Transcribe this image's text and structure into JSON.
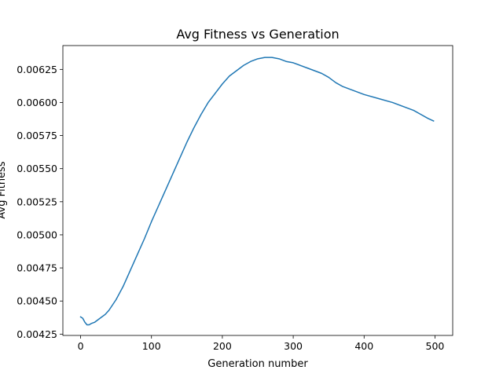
{
  "chart_data": {
    "type": "line",
    "title": "Avg Fitness vs Generation",
    "xlabel": "Generation number",
    "ylabel": "Avg Fitness",
    "xlim": [
      -25,
      525
    ],
    "ylim": [
      0.00424,
      0.00643
    ],
    "xticks": [
      0,
      100,
      200,
      300,
      400,
      500
    ],
    "xtick_labels": [
      "0",
      "100",
      "200",
      "300",
      "400",
      "500"
    ],
    "yticks": [
      0.00425,
      0.0045,
      0.00475,
      0.005,
      0.00525,
      0.0055,
      0.00575,
      0.006,
      0.00625
    ],
    "ytick_labels": [
      "0.00425",
      "0.00450",
      "0.00475",
      "0.00500",
      "0.00525",
      "0.00550",
      "0.00575",
      "0.00600",
      "0.00625"
    ],
    "grid": false,
    "series": [
      {
        "color": "#1f77b4",
        "x": [
          0,
          3,
          6,
          9,
          12,
          15,
          20,
          25,
          30,
          35,
          40,
          45,
          50,
          55,
          60,
          65,
          70,
          80,
          90,
          100,
          110,
          120,
          130,
          140,
          150,
          160,
          170,
          180,
          190,
          200,
          210,
          220,
          230,
          240,
          250,
          260,
          270,
          280,
          290,
          300,
          310,
          320,
          330,
          340,
          350,
          360,
          370,
          380,
          390,
          400,
          420,
          440,
          460,
          470,
          480,
          490,
          498
        ],
        "y": [
          0.00438,
          0.00437,
          0.00434,
          0.00432,
          0.00432,
          0.00433,
          0.00434,
          0.00436,
          0.00438,
          0.0044,
          0.00443,
          0.00447,
          0.00451,
          0.00456,
          0.00461,
          0.00467,
          0.00473,
          0.00485,
          0.00497,
          0.0051,
          0.00522,
          0.00534,
          0.00546,
          0.00558,
          0.0057,
          0.00581,
          0.00591,
          0.006,
          0.00607,
          0.00614,
          0.0062,
          0.00624,
          0.00628,
          0.00631,
          0.00633,
          0.00634,
          0.00634,
          0.00633,
          0.00631,
          0.0063,
          0.00628,
          0.00626,
          0.00624,
          0.00622,
          0.00619,
          0.00615,
          0.00612,
          0.0061,
          0.00608,
          0.00606,
          0.00603,
          0.006,
          0.00596,
          0.00594,
          0.00591,
          0.00588,
          0.00586
        ]
      }
    ]
  }
}
